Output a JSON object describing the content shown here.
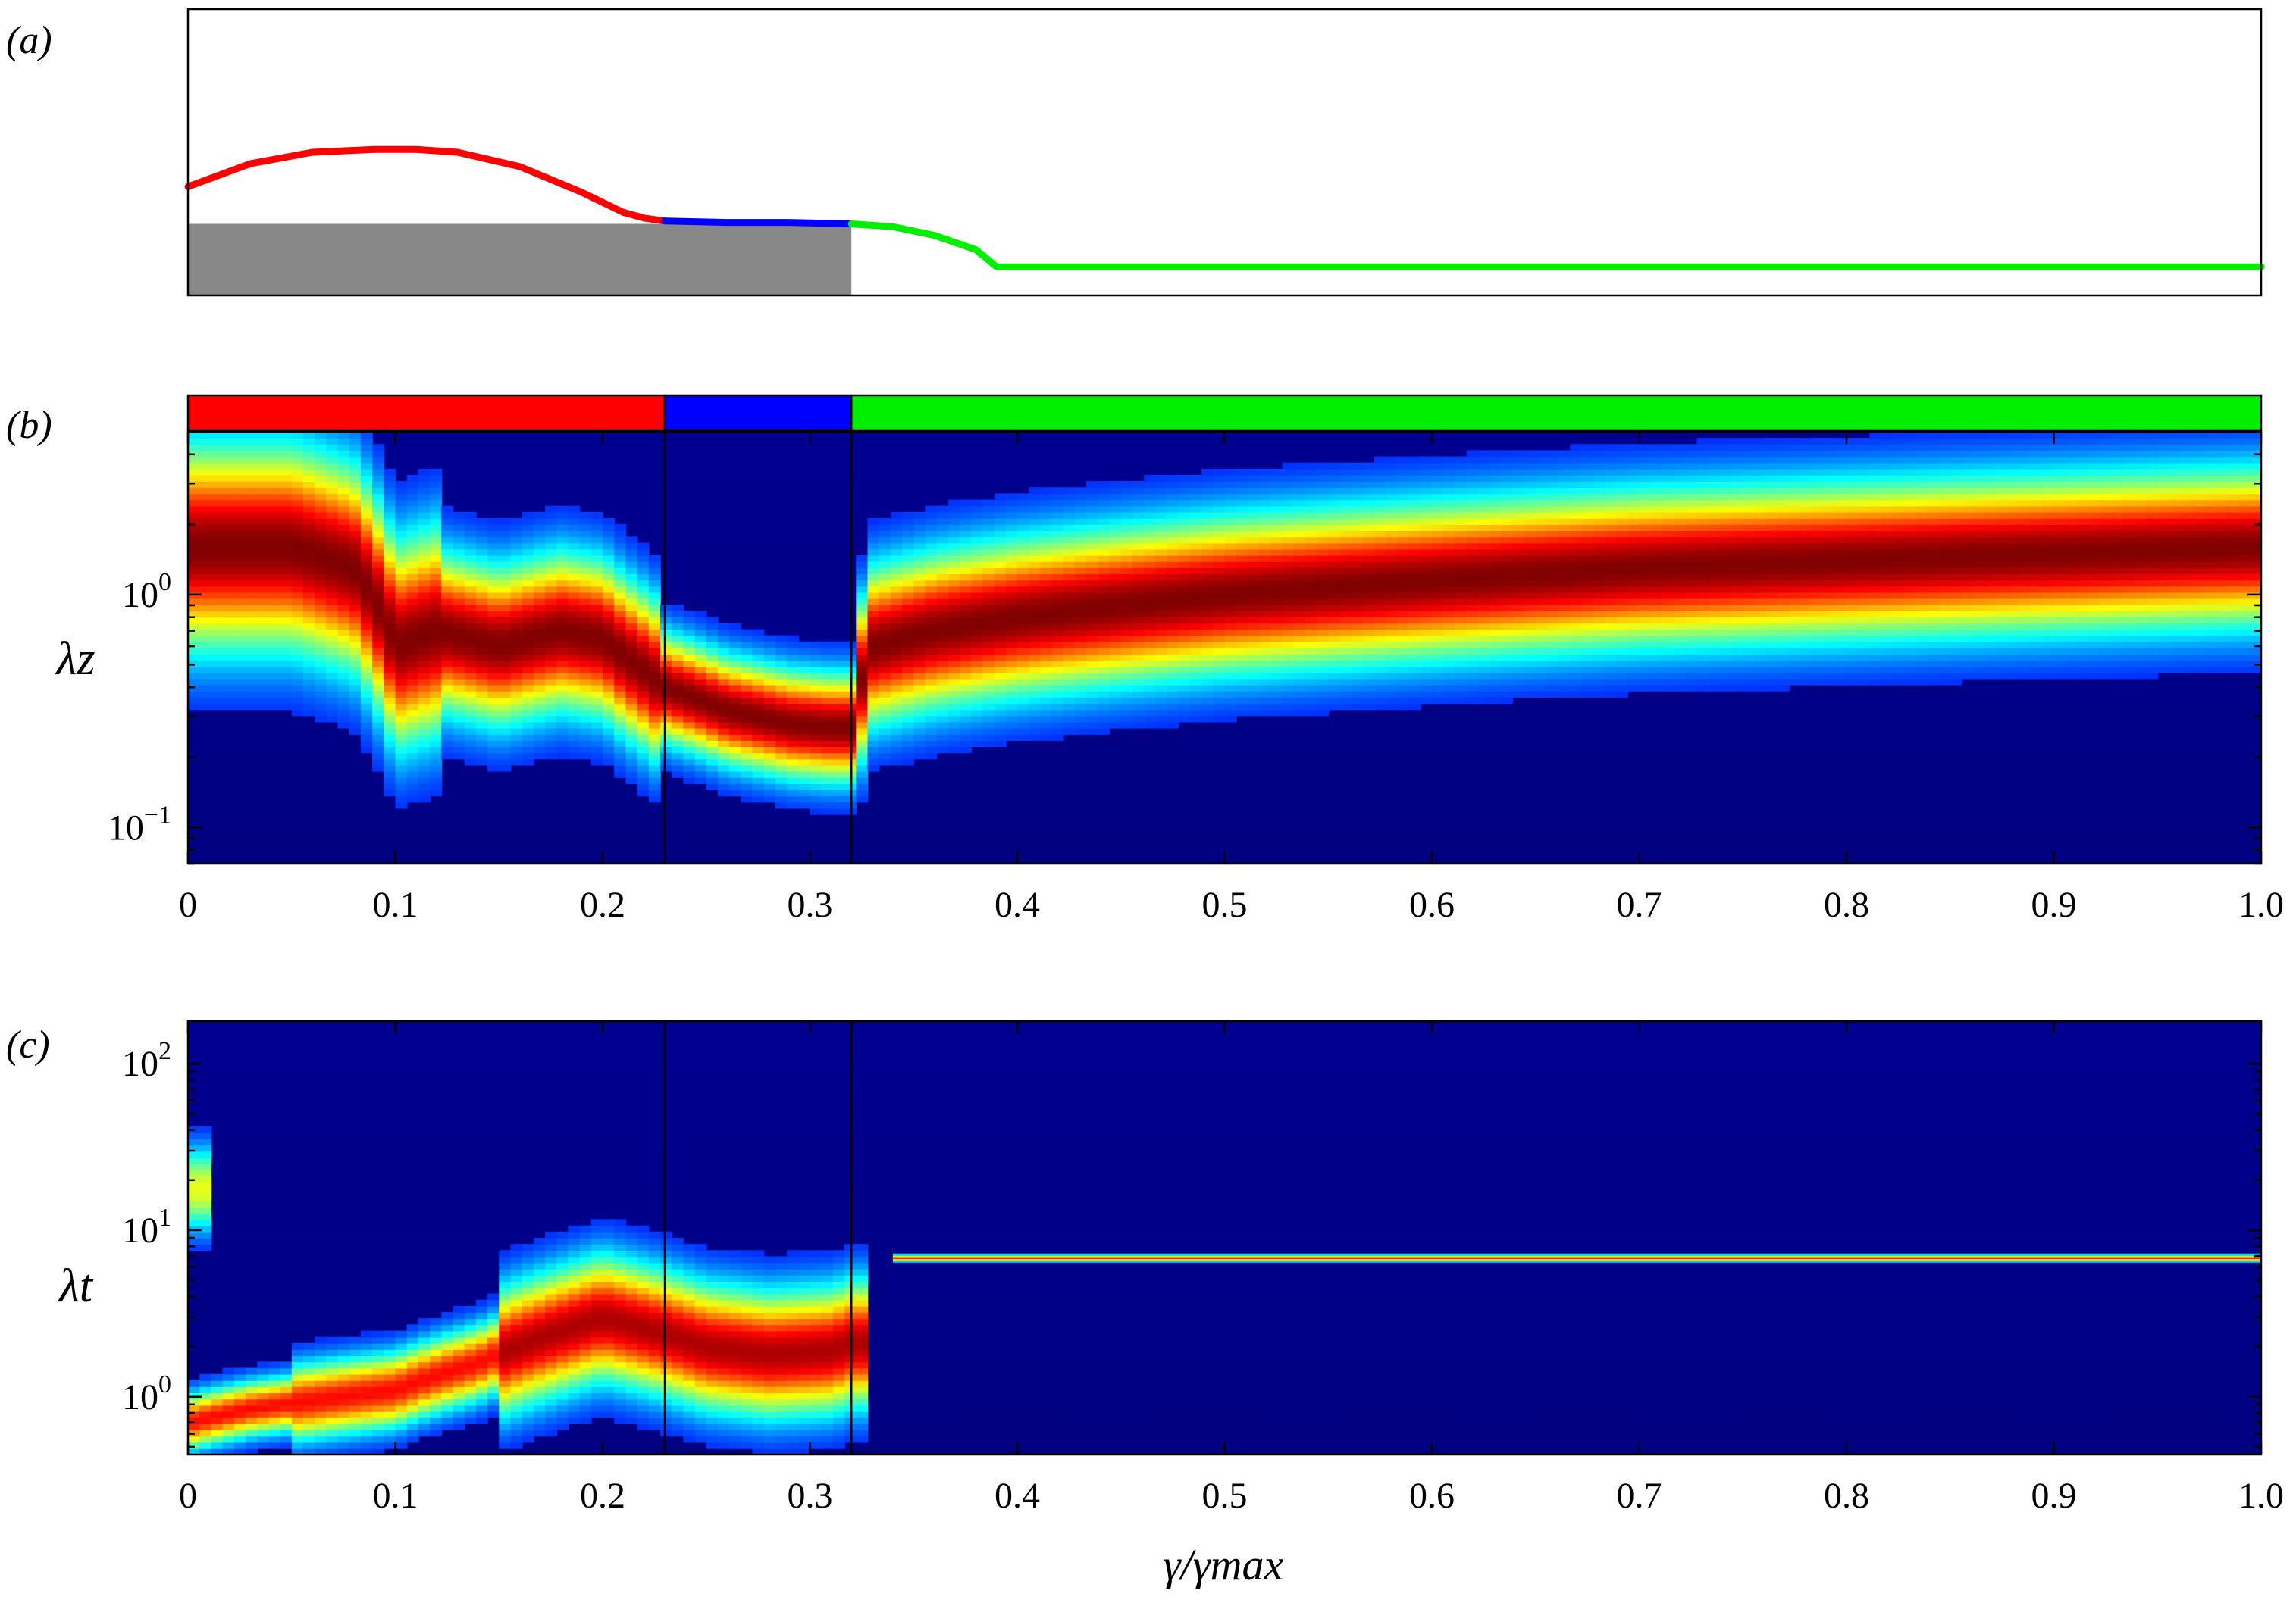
{
  "chart_data": [
    {
      "panel": "(a)",
      "type": "line",
      "title": "",
      "xlabel": "",
      "ylabel": "",
      "xlim": [
        0,
        1
      ],
      "ylim": [
        0,
        1
      ],
      "grid": false,
      "substrate": {
        "x": [
          0,
          0.32
        ],
        "top": 0.25,
        "color": "#888888"
      },
      "series": [
        {
          "color": "#ff0000",
          "x": [
            0,
            0.03,
            0.06,
            0.09,
            0.11,
            0.13,
            0.16,
            0.19,
            0.21,
            0.22,
            0.23
          ],
          "y": [
            0.38,
            0.46,
            0.5,
            0.51,
            0.51,
            0.5,
            0.45,
            0.36,
            0.29,
            0.27,
            0.26
          ]
        },
        {
          "color": "#0000ff",
          "x": [
            0.23,
            0.26,
            0.29,
            0.32
          ],
          "y": [
            0.26,
            0.255,
            0.255,
            0.25
          ]
        },
        {
          "color": "#00ee00",
          "x": [
            0.32,
            0.34,
            0.36,
            0.38,
            0.39,
            0.45,
            0.6,
            0.8,
            1.0
          ],
          "y": [
            0.25,
            0.24,
            0.21,
            0.16,
            0.1,
            0.1,
            0.1,
            0.1,
            0.1
          ]
        }
      ]
    },
    {
      "panel": "(b)",
      "type": "heatmap",
      "title": "",
      "xlabel": "",
      "ylabel": "λz",
      "y_scale": "log",
      "xlim": [
        0,
        1.0
      ],
      "ylim": [
        0.07,
        5
      ],
      "x_ticks": [
        "0",
        "0.1",
        "0.2",
        "0.3",
        "0.4",
        "0.5",
        "0.6",
        "0.7",
        "0.8",
        "0.9",
        "1.0"
      ],
      "y_ticks": [
        {
          "value": 1,
          "base": "10",
          "exp": "0"
        },
        {
          "value": 0.1,
          "base": "10",
          "exp": "−1"
        }
      ],
      "regime_bar": [
        {
          "x0": 0,
          "x1": 0.23,
          "color": "#ff0000"
        },
        {
          "x0": 0.23,
          "x1": 0.32,
          "color": "#0000ff"
        },
        {
          "x0": 0.32,
          "x1": 1.0,
          "color": "#00ee00"
        }
      ],
      "vertical_lines": [
        0.23,
        0.32
      ],
      "ridge": {
        "x": [
          0,
          0.05,
          0.08,
          0.1,
          0.12,
          0.15,
          0.18,
          0.2,
          0.21,
          0.23,
          0.26,
          0.29,
          0.31,
          0.32,
          0.33,
          0.36,
          0.4,
          0.5,
          0.6,
          0.7,
          0.8,
          0.9,
          1.0
        ],
        "y": [
          1.6,
          1.6,
          1.3,
          0.6,
          0.7,
          0.6,
          0.7,
          0.65,
          0.55,
          0.4,
          0.32,
          0.28,
          0.27,
          0.27,
          0.6,
          0.7,
          0.8,
          1.0,
          1.15,
          1.3,
          1.4,
          1.5,
          1.6
        ]
      }
    },
    {
      "panel": "(c)",
      "type": "heatmap",
      "title": "",
      "xlabel": "γ/γmax",
      "ylabel": "λt",
      "y_scale": "log",
      "xlim": [
        0,
        1.0
      ],
      "ylim": [
        0.45,
        180
      ],
      "x_ticks": [
        "0",
        "0.1",
        "0.2",
        "0.3",
        "0.4",
        "0.5",
        "0.6",
        "0.7",
        "0.8",
        "0.9",
        "1.0"
      ],
      "y_ticks": [
        {
          "value": 100,
          "base": "10",
          "exp": "2"
        },
        {
          "value": 10,
          "base": "10",
          "exp": "1"
        },
        {
          "value": 1,
          "base": "10",
          "exp": "0"
        }
      ],
      "vertical_lines": [
        0.23,
        0.32
      ],
      "ridge": {
        "x": [
          0,
          0.03,
          0.06,
          0.1,
          0.14,
          0.18,
          0.2,
          0.22,
          0.25,
          0.28,
          0.31,
          0.32
        ],
        "y": [
          0.7,
          0.85,
          0.95,
          1.1,
          1.6,
          2.5,
          3.0,
          2.6,
          2.0,
          1.8,
          1.9,
          2.1
        ]
      },
      "line": {
        "x0": 0.34,
        "x1": 1.0,
        "y": 6.8
      }
    }
  ]
}
